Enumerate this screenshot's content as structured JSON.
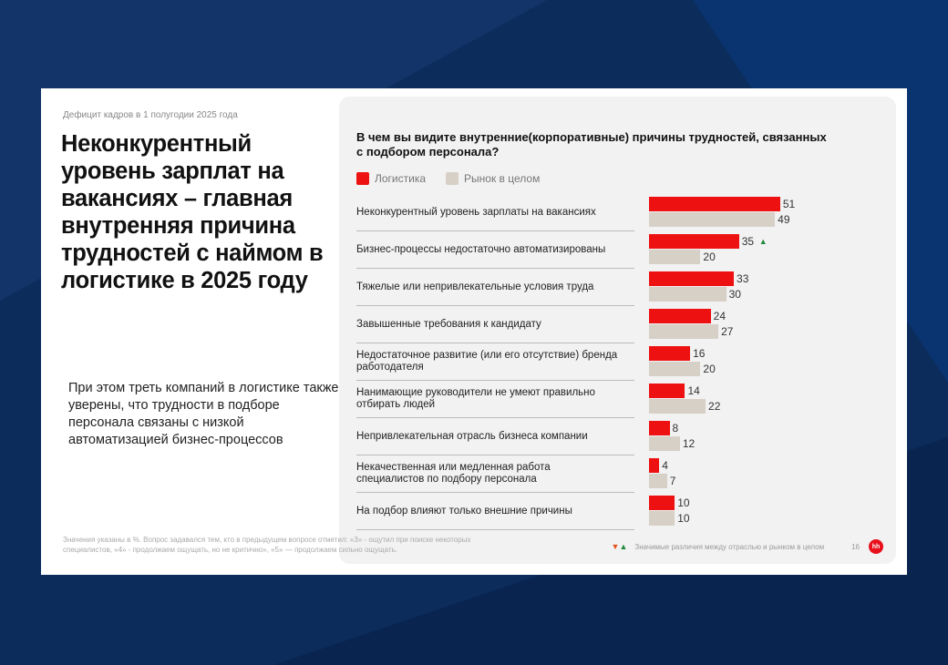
{
  "kicker": "Дефицит кадров в 1 полугодии 2025 года",
  "title": "Неконкурентный уровень зарплат на вакансиях – главная внутренняя причина трудностей с наймом в логистике в 2025 году",
  "subtitle": "При этом треть компаний в логистике также уверены, что трудности в подборе персонала связаны с низкой автоматизацией бизнес-процессов",
  "note": "Значения указаны в %. Вопрос задавался тем, кто в предыдущем вопросе отметил: «3» - ощутил при поиске некоторых специалистов, «4» - продолжаем ощущать, но не критично», «5» — продолжаем сильно ощущать.",
  "footer": {
    "legend": "Значимые различия между отраслью и рынком в целом",
    "page": "16",
    "logo": "hh"
  },
  "colors": {
    "logistics": "#ee1111",
    "market": "#d6d0c6",
    "up": "#1f8a3b",
    "down": "#e8501d"
  },
  "chart_data": {
    "type": "bar",
    "title": "В чем вы видите внутренние(корпоративные) причины трудностей, связанных с подбором персонала?",
    "orientation": "horizontal",
    "legend_placement": "top-left",
    "categories": [
      "Неконкурентный уровень зарплаты на вакансиях",
      "Бизнес-процессы недостаточно автоматизированы",
      "Тяжелые или непривлекательные условия труда",
      "Завышенные требования к кандидату",
      "Недостаточное развитие (или его отсутствие) бренда работодателя",
      "Нанимающие руководители не умеют правильно отбирать людей",
      "Непривлекательная отрасль бизнеса компании",
      "Некачественная или медленная работа специалистов по подбору персонала",
      "На подбор влияют только внешние причины"
    ],
    "series": [
      {
        "name": "Логистика",
        "values": [
          51,
          35,
          33,
          24,
          16,
          14,
          8,
          4,
          10
        ]
      },
      {
        "name": "Рынок в целом",
        "values": [
          49,
          20,
          30,
          27,
          20,
          22,
          12,
          7,
          10
        ]
      }
    ],
    "significant_up": [
      1
    ],
    "unit": "%"
  }
}
